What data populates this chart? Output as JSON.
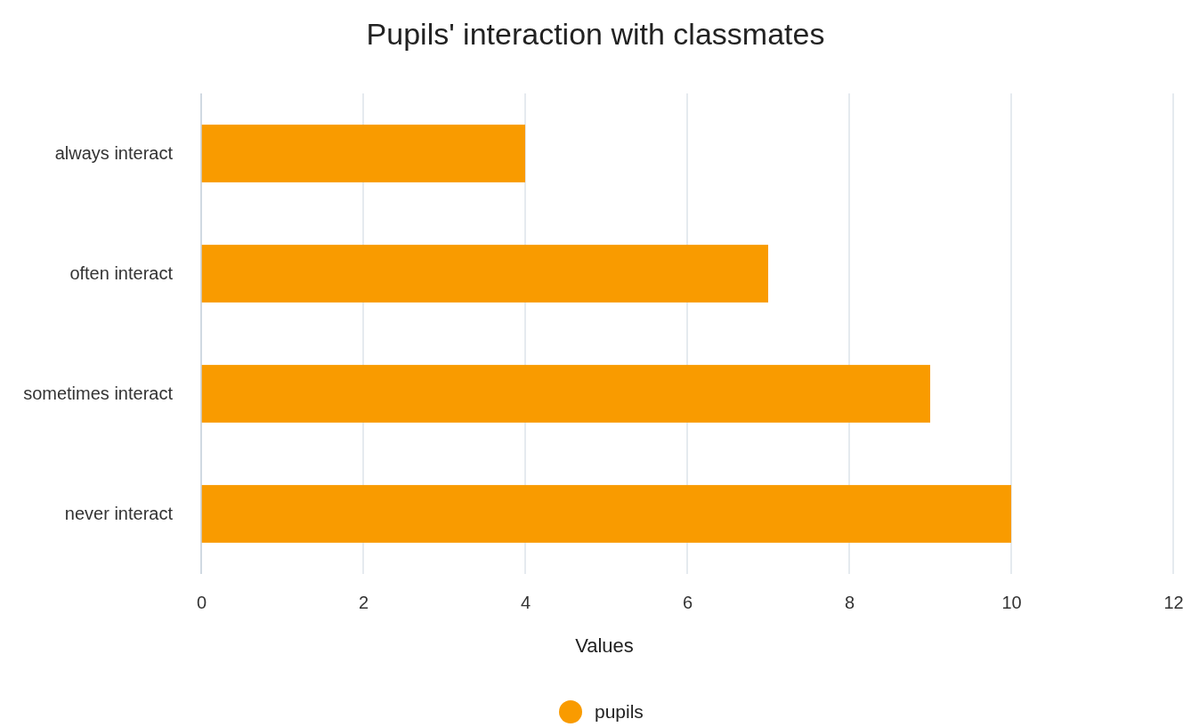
{
  "chart_data": {
    "type": "bar",
    "title": "Pupils' interaction with classmates",
    "xlabel": "Values",
    "orientation": "horizontal",
    "categories": [
      "always interact",
      "often interact",
      "sometimes interact",
      "never interact"
    ],
    "series": [
      {
        "name": "pupils",
        "color": "#f99b00",
        "values": [
          4,
          7,
          9,
          10
        ]
      }
    ],
    "xlim": [
      0,
      12
    ],
    "xticks": [
      0,
      2,
      4,
      6,
      8,
      10,
      12
    ],
    "grid": "x",
    "legend": "bottom"
  }
}
